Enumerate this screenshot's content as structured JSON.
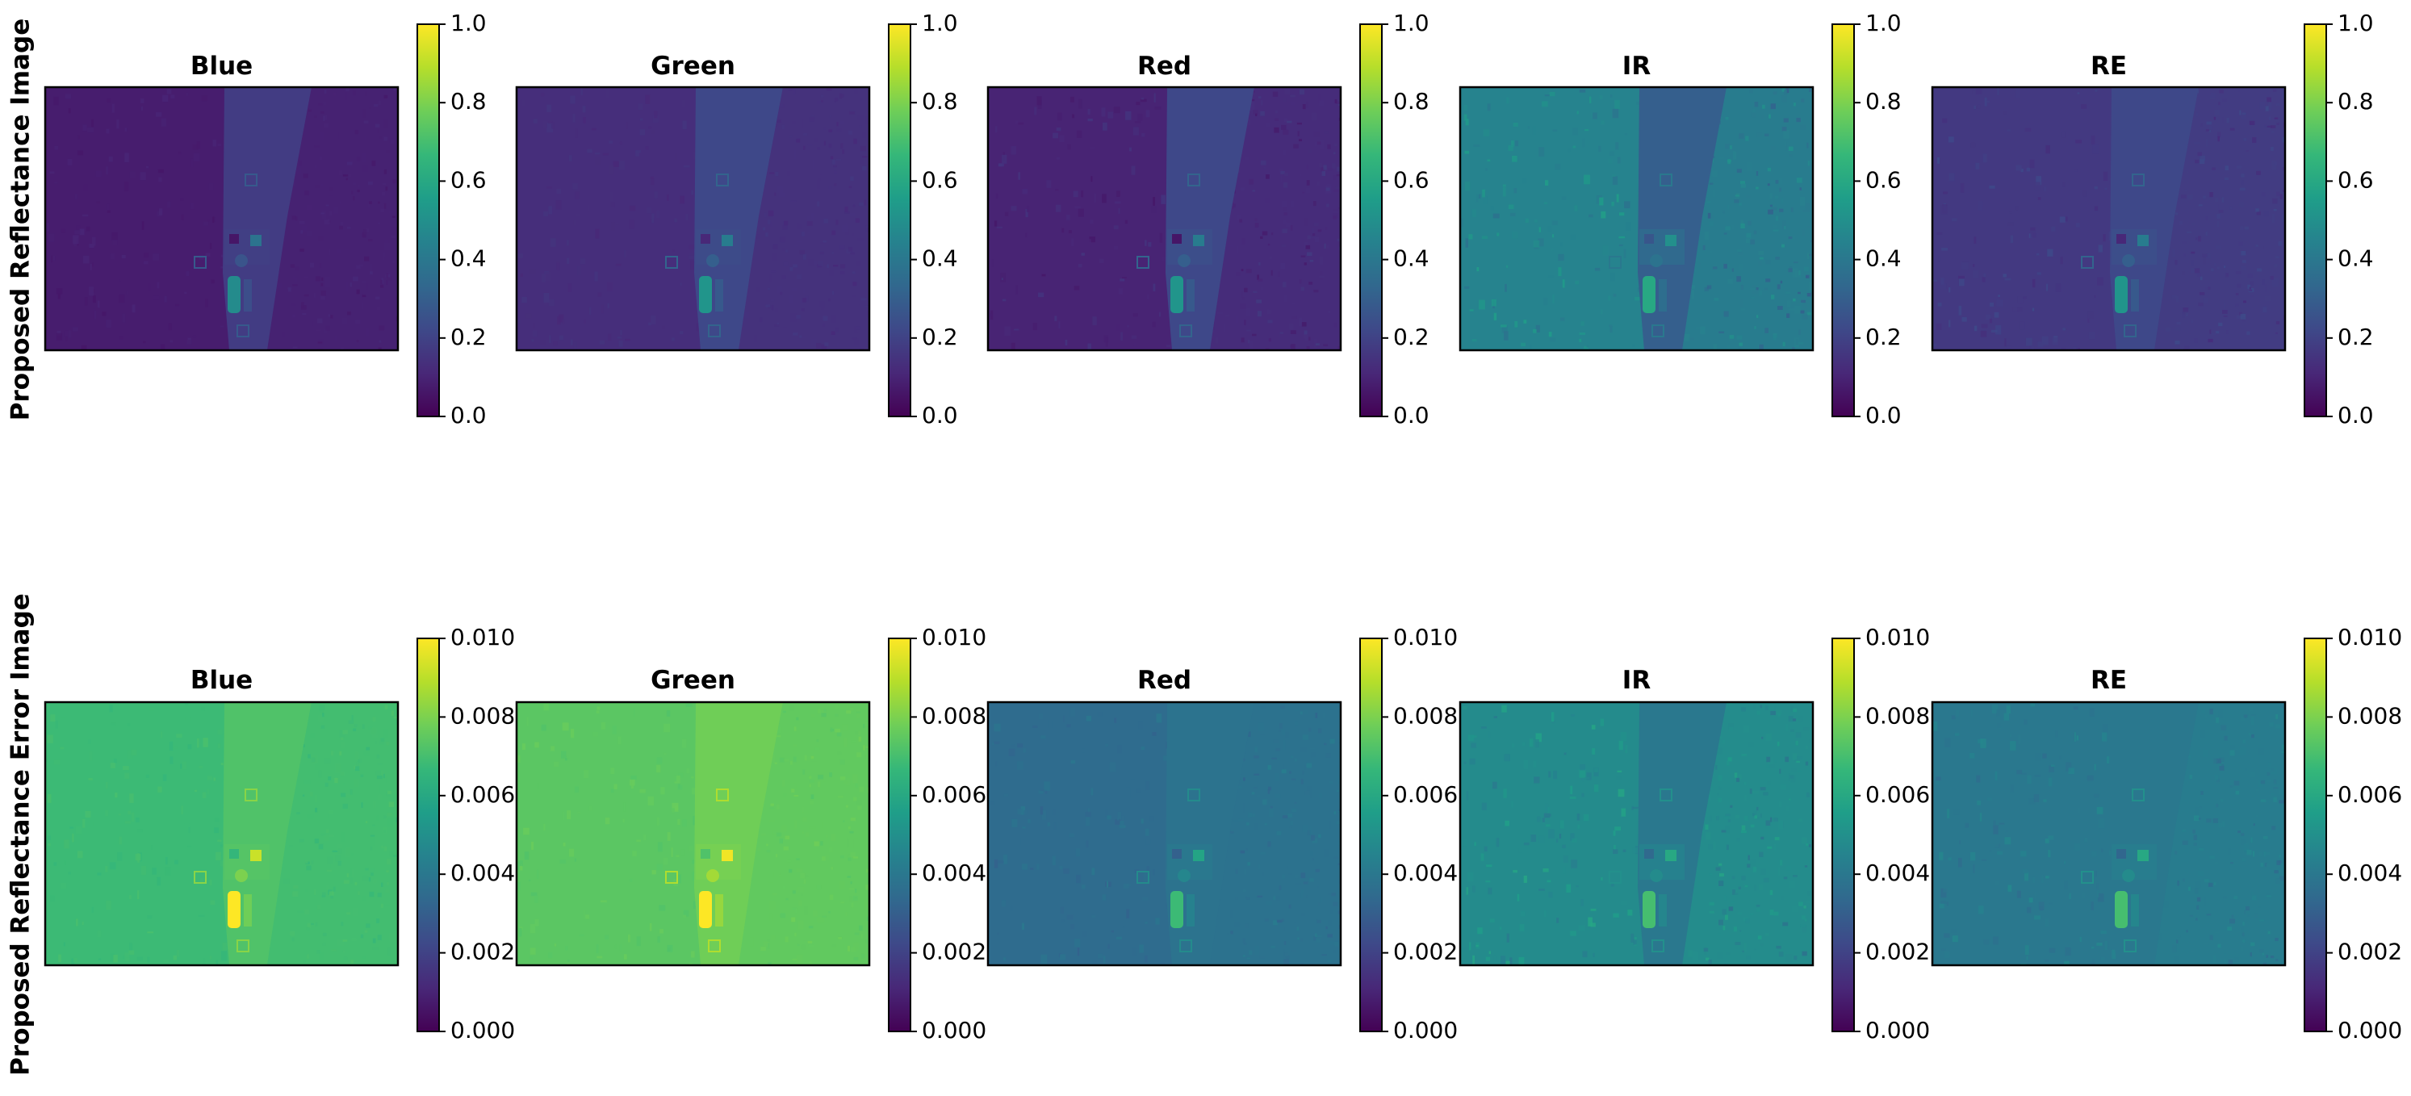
{
  "colors": {
    "viridis": [
      "#440154",
      "#482878",
      "#3e4989",
      "#31688e",
      "#26828e",
      "#1f9e89",
      "#35b779",
      "#6ece58",
      "#b5de2b",
      "#fde725"
    ]
  },
  "chart_data": [
    {
      "type": "heatmap",
      "row_label": "Proposed Reflectance Image",
      "colormap": "viridis",
      "colorbar": {
        "range": [
          0.0,
          1.0
        ],
        "ticks": [
          "0.0",
          "0.2",
          "0.4",
          "0.6",
          "0.8",
          "1.0"
        ]
      },
      "panels": [
        {
          "title": "Blue",
          "base_level": 0.08,
          "road_level": 0.18,
          "field_level": 0.08,
          "texture": 0.02
        },
        {
          "title": "Green",
          "base_level": 0.13,
          "road_level": 0.22,
          "field_level": 0.13,
          "texture": 0.02
        },
        {
          "title": "Red",
          "base_level": 0.1,
          "road_level": 0.22,
          "field_level": 0.1,
          "texture": 0.04
        },
        {
          "title": "IR",
          "base_level": 0.35,
          "road_level": 0.3,
          "field_level": 0.45,
          "texture": 0.08
        },
        {
          "title": "RE",
          "base_level": 0.15,
          "road_level": 0.22,
          "field_level": 0.17,
          "texture": 0.04
        }
      ]
    },
    {
      "type": "heatmap",
      "row_label": "Proposed Reflectance Error Image",
      "colormap": "viridis",
      "colorbar": {
        "range": [
          0.0,
          0.01
        ],
        "ticks": [
          "0.000",
          "0.002",
          "0.004",
          "0.006",
          "0.008",
          "0.010"
        ]
      },
      "panels": [
        {
          "title": "Blue",
          "base_level": 0.0068,
          "road_level": 0.0072,
          "field_level": 0.0068,
          "texture": 0.0002
        },
        {
          "title": "Green",
          "base_level": 0.0074,
          "road_level": 0.0078,
          "field_level": 0.0074,
          "texture": 0.0002
        },
        {
          "title": "Red",
          "base_level": 0.0035,
          "road_level": 0.0038,
          "field_level": 0.0035,
          "texture": 0.0004
        },
        {
          "title": "IR",
          "base_level": 0.0042,
          "road_level": 0.004,
          "field_level": 0.0048,
          "texture": 0.0008
        },
        {
          "title": "RE",
          "base_level": 0.0038,
          "road_level": 0.004,
          "field_level": 0.004,
          "texture": 0.0005
        }
      ]
    }
  ]
}
